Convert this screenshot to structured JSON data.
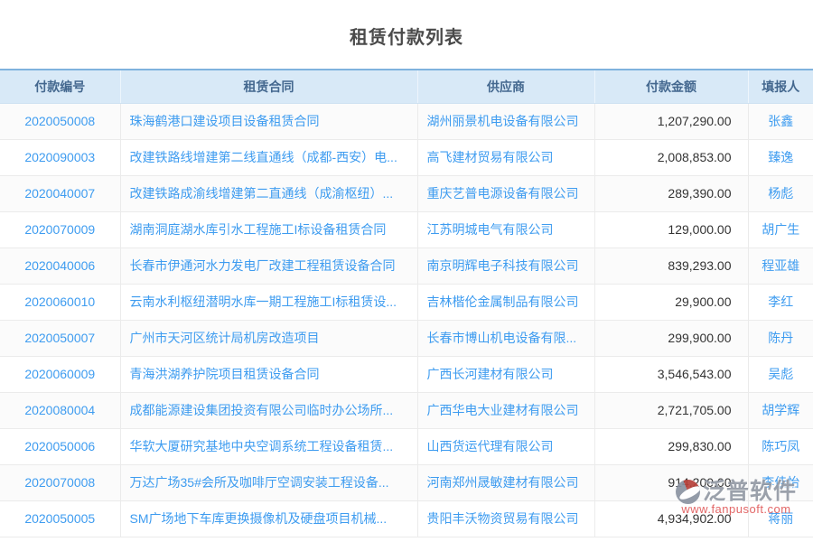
{
  "page": {
    "title": "租赁付款列表"
  },
  "colors": {
    "header_bg": "#d8e9f7",
    "header_border_top": "#7fb2de",
    "header_text": "#44688f",
    "link": "#3e9cf0",
    "amount_text": "#333333",
    "row_border": "#ebebeb",
    "watermark_brand": "#939aa5",
    "watermark_url": "#e05a5a"
  },
  "table": {
    "columns": [
      {
        "key": "payment_no",
        "label": "付款编号"
      },
      {
        "key": "contract",
        "label": "租赁合同"
      },
      {
        "key": "supplier",
        "label": "供应商"
      },
      {
        "key": "amount",
        "label": "付款金额"
      },
      {
        "key": "reporter",
        "label": "填报人"
      }
    ],
    "rows": [
      {
        "payment_no": "2020050008",
        "contract": "珠海鹤港口建设项目设备租赁合同",
        "supplier": "湖州丽景机电设备有限公司",
        "amount": "1,207,290.00",
        "reporter": "张鑫"
      },
      {
        "payment_no": "2020090003",
        "contract": "改建铁路线增建第二线直通线（成都-西安）电...",
        "supplier": "高飞建材贸易有限公司",
        "amount": "2,008,853.00",
        "reporter": "臻逸"
      },
      {
        "payment_no": "2020040007",
        "contract": "改建铁路成渝线增建第二直通线（成渝枢纽）...",
        "supplier": "重庆艺普电源设备有限公司",
        "amount": "289,390.00",
        "reporter": "杨彪"
      },
      {
        "payment_no": "2020070009",
        "contract": "湖南洞庭湖水库引水工程施工I标设备租赁合同",
        "supplier": "江苏明城电气有限公司",
        "amount": "129,000.00",
        "reporter": "胡广生"
      },
      {
        "payment_no": "2020040006",
        "contract": "长春市伊通河水力发电厂改建工程租赁设备合同",
        "supplier": "南京明辉电子科技有限公司",
        "amount": "839,293.00",
        "reporter": "程亚雄"
      },
      {
        "payment_no": "2020060010",
        "contract": "云南水利枢纽潜明水库一期工程施工I标租赁设...",
        "supplier": "吉林楷伦金属制品有限公司",
        "amount": "29,900.00",
        "reporter": "李红"
      },
      {
        "payment_no": "2020050007",
        "contract": "广州市天河区统计局机房改造项目",
        "supplier": "长春市博山机电设备有限...",
        "amount": "299,900.00",
        "reporter": "陈丹"
      },
      {
        "payment_no": "2020060009",
        "contract": "青海洪湖养护院项目租赁设备合同",
        "supplier": "广西长河建材有限公司",
        "amount": "3,546,543.00",
        "reporter": "吴彪"
      },
      {
        "payment_no": "2020080004",
        "contract": "成都能源建设集团投资有限公司临时办公场所...",
        "supplier": "广西华电大业建材有限公司",
        "amount": "2,721,705.00",
        "reporter": "胡学辉"
      },
      {
        "payment_no": "2020050006",
        "contract": "华软大厦研究基地中央空调系统工程设备租赁...",
        "supplier": "山西货运代理有限公司",
        "amount": "299,830.00",
        "reporter": "陈巧凤"
      },
      {
        "payment_no": "2020070008",
        "contract": "万达广场35#会所及咖啡厅空调安装工程设备...",
        "supplier": "河南郑州晟敏建材有限公司",
        "amount": "914,200.00",
        "reporter": "李佳怡"
      },
      {
        "payment_no": "2020050005",
        "contract": "SM广场地下车库更换摄像机及硬盘项目机械...",
        "supplier": "贵阳丰沃物资贸易有限公司",
        "amount": "4,934,902.00",
        "reporter": "蒋丽"
      }
    ]
  },
  "watermark": {
    "brand": "泛普软件",
    "url": "www.fanpusoft.com",
    "icon": "fanpu-logo-icon"
  }
}
